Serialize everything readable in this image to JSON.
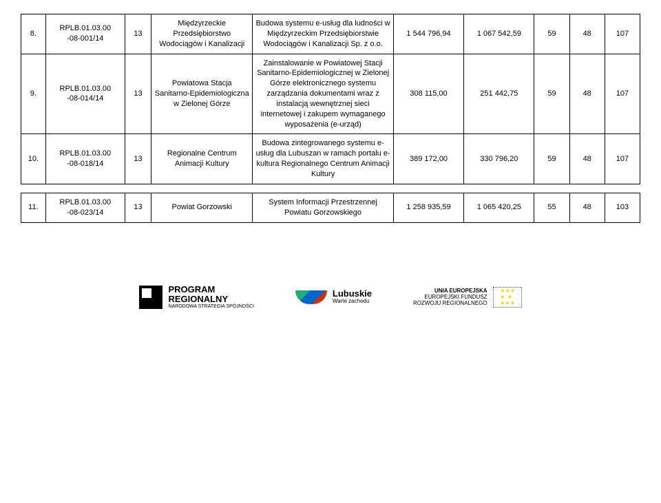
{
  "tables": [
    {
      "rows": [
        {
          "idx": "8.",
          "code_line1": "RPLB.01.03.00",
          "code_line2": "-08-001/14",
          "region": "13",
          "beneficiary": "Międzyrzeckie Przedsiębiorstwo Wodociągów i Kanalizacji",
          "description": "Budowa systemu e-usług dla ludności w Międzyrzeckim Przedsiębiorstwie Wodociągów i Kanalizacji Sp. z o.o.",
          "val1": "1 544 796,94",
          "val2": "1 067 542,59",
          "c1": "59",
          "c2": "48",
          "c3": "107"
        },
        {
          "idx": "9.",
          "code_line1": "RPLB.01.03.00",
          "code_line2": "-08-014/14",
          "region": "13",
          "beneficiary": "Powiatowa Stacja Sanitarno-Epidemiologiczna w Zielonej Górze",
          "description": "Zainstalowanie w Powiatowej Stacji Sanitarno-Epidemiologicznej w Zielonej Górze elektronicznego systemu zarządzania dokumentami wraz z instalacją wewnętrznej sieci internetowej i zakupem wymaganego wyposażenia (e-urząd)",
          "val1": "308 115,00",
          "val2": "251 442,75",
          "c1": "59",
          "c2": "48",
          "c3": "107"
        },
        {
          "idx": "10.",
          "code_line1": "RPLB.01.03.00",
          "code_line2": "-08-018/14",
          "region": "13",
          "beneficiary": "Regionalne Centrum Animacji Kultury",
          "description": "Budowa zintegrowanego systemu e-usług dla Lubuszan w ramach portalu e-kultura Regionalnego Centrum Animacji Kultury",
          "val1": "389 172,00",
          "val2": "330 796,20",
          "c1": "59",
          "c2": "48",
          "c3": "107"
        }
      ]
    },
    {
      "rows": [
        {
          "idx": "11.",
          "code_line1": "RPLB.01.03.00",
          "code_line2": "-08-023/14",
          "region": "13",
          "beneficiary": "Powiat Gorzowski",
          "description": "System Informacji Przestrzennej Powiatu Gorzowskiego",
          "val1": "1 258 935,59",
          "val2": "1 065 420,25",
          "c1": "55",
          "c2": "48",
          "c3": "103"
        }
      ]
    }
  ],
  "footer": {
    "program_line1": "PROGRAM",
    "program_line2": "REGIONALNY",
    "program_sub": "NARODOWA STRATEGIA SPÓJNOŚCI",
    "lub_line1": "Lubuskie",
    "lub_line2": "Warte zachodu",
    "eu_line1": "UNIA EUROPEJSKA",
    "eu_line2": "EUROPEJSKI FUNDUSZ",
    "eu_line3": "ROZWOJU REGIONALNEGO"
  }
}
